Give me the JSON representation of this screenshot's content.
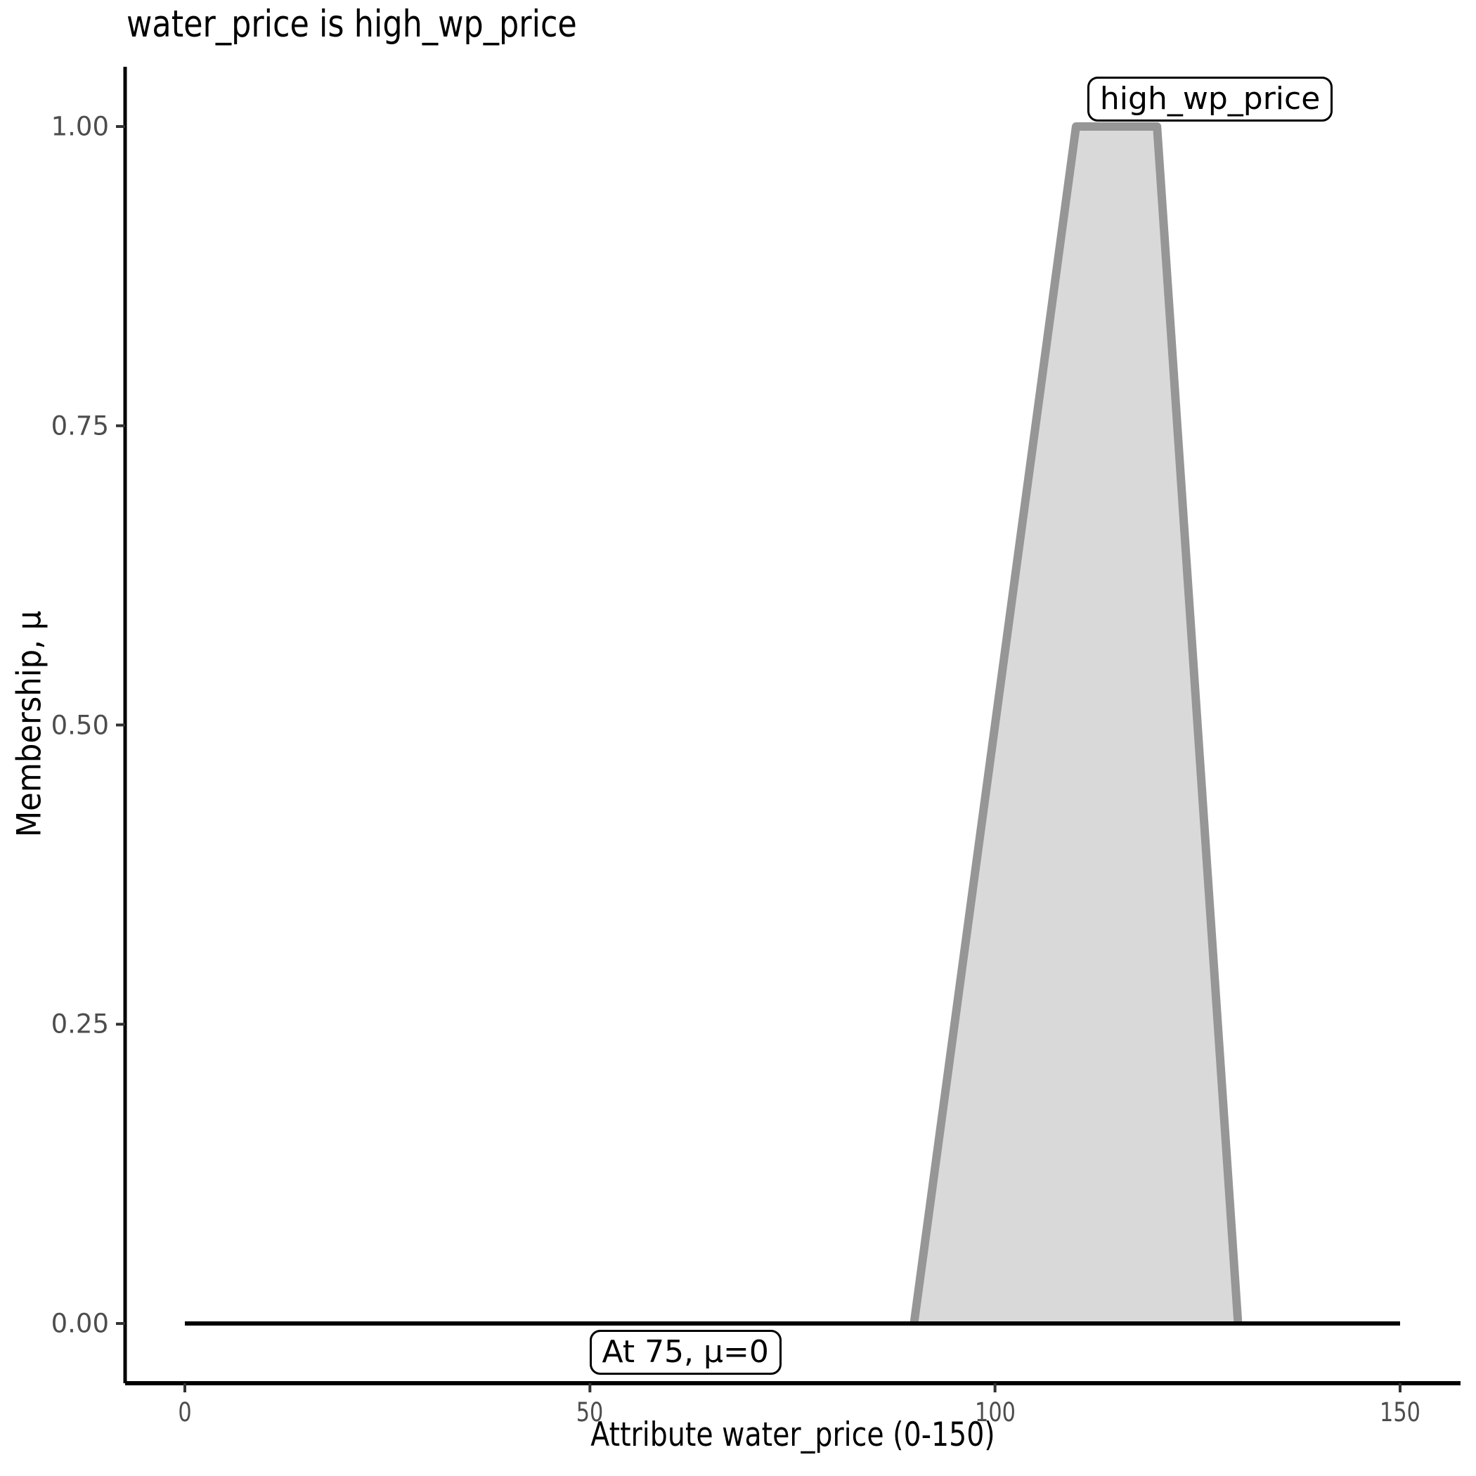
{
  "title": "water_price is high_wp_price",
  "colors": {
    "background": "#ffffff",
    "axis_line": "#000000",
    "tick_mark": "#333333",
    "tick_label": "#4d4d4d",
    "set_fill": "#d9d9d9",
    "set_outline": "#969696",
    "zero_line": "#000000",
    "label_box_bg": "#ffffff",
    "label_box_border": "#000000",
    "label_text": "#000000"
  },
  "chart_data": {
    "type": "area",
    "title": "water_price is high_wp_price",
    "xlabel": "Attribute water_price (0-150)",
    "ylabel": "Membership, μ",
    "xlim": [
      0,
      150
    ],
    "ylim": [
      0,
      1
    ],
    "x_ticks": [
      0,
      50,
      100,
      150
    ],
    "x_tick_labels": [
      "0",
      "50",
      "100",
      "150"
    ],
    "y_ticks": [
      0,
      0.25,
      0.5,
      0.75,
      1
    ],
    "y_tick_labels": [
      "0.00",
      "0.25",
      "0.50",
      "0.75",
      "1.00"
    ],
    "grid": false,
    "legend": "none",
    "series": [
      {
        "name": "high_wp_price",
        "kind": "fuzzy-set-trapezoid",
        "x": [
          90,
          110,
          120,
          130
        ],
        "y": [
          0,
          1,
          1,
          0
        ],
        "fill": "#d9d9d9",
        "stroke": "#969696"
      },
      {
        "name": "evaluated-membership",
        "kind": "line",
        "x": [
          0,
          150
        ],
        "y": [
          0,
          0
        ],
        "stroke": "#000000"
      }
    ],
    "annotations": [
      {
        "id": "set-name-label",
        "text": "high_wp_price",
        "x": 110,
        "y": 1,
        "anchor": "bottom-left"
      },
      {
        "id": "evaluation-label",
        "text": "At 75, μ=0",
        "x": 75,
        "y": 0,
        "anchor": "top-right"
      }
    ]
  }
}
